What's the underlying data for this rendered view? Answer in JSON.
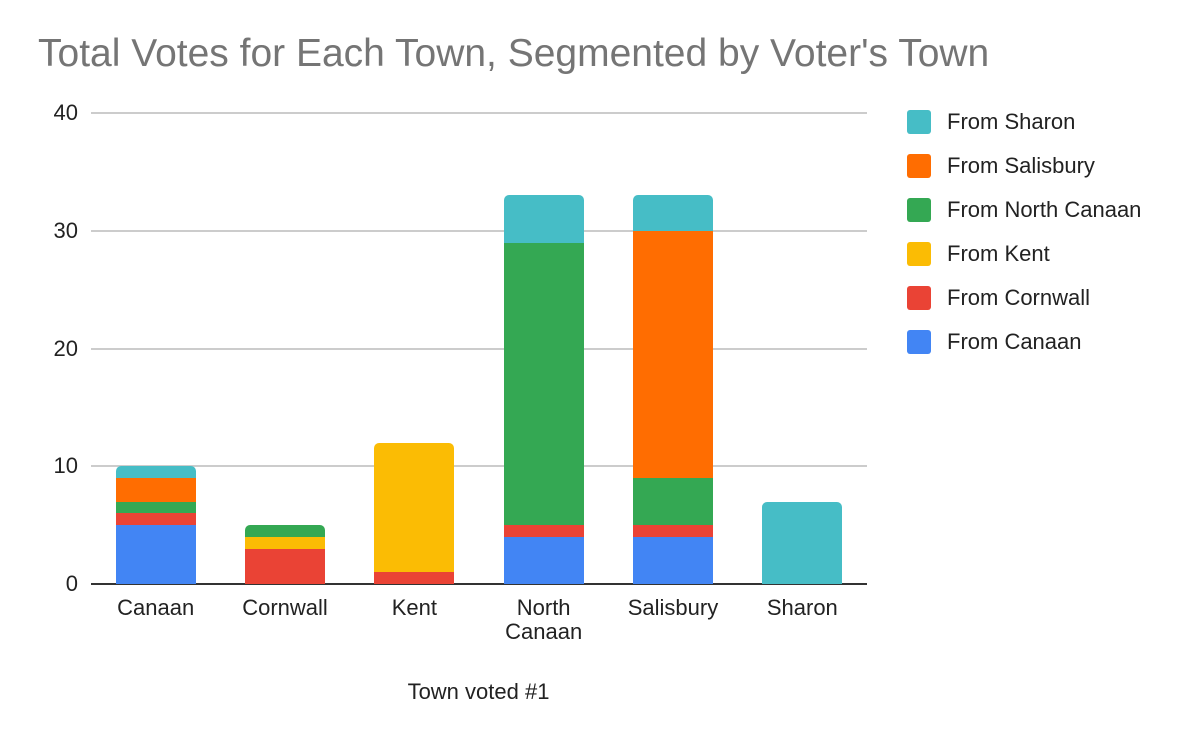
{
  "chart_data": {
    "type": "bar",
    "stacked": true,
    "title": "Total Votes for Each Town, Segmented by Voter's Town",
    "xlabel": "Town voted #1",
    "ylabel": "",
    "ylim": [
      0,
      40
    ],
    "yticks": [
      0,
      10,
      20,
      30,
      40
    ],
    "grid": true,
    "legend_position": "right",
    "categories": [
      "Canaan",
      "Cornwall",
      "Kent",
      "North Canaan",
      "Salisbury",
      "Sharon"
    ],
    "series": [
      {
        "name": "From Canaan",
        "color": "#4285f4",
        "values": [
          5,
          0,
          0,
          4,
          4,
          0
        ]
      },
      {
        "name": "From Cornwall",
        "color": "#ea4335",
        "values": [
          1,
          3,
          1,
          1,
          1,
          0
        ]
      },
      {
        "name": "From Kent",
        "color": "#fbbc04",
        "values": [
          0,
          1,
          11,
          0,
          0,
          0
        ]
      },
      {
        "name": "From North Canaan",
        "color": "#34a853",
        "values": [
          1,
          1,
          0,
          24,
          4,
          0
        ]
      },
      {
        "name": "From Salisbury",
        "color": "#ff6d01",
        "values": [
          2,
          0,
          0,
          0,
          21,
          0
        ]
      },
      {
        "name": "From Sharon",
        "color": "#46bdc6",
        "values": [
          1,
          0,
          0,
          4,
          3,
          7
        ]
      }
    ]
  },
  "x_labels": [
    {
      "line1": "Canaan",
      "line2": ""
    },
    {
      "line1": "Cornwall",
      "line2": ""
    },
    {
      "line1": "Kent",
      "line2": ""
    },
    {
      "line1": "North",
      "line2": "Canaan"
    },
    {
      "line1": "Salisbury",
      "line2": ""
    },
    {
      "line1": "Sharon",
      "line2": ""
    }
  ],
  "legend_order": [
    "From Sharon",
    "From Salisbury",
    "From North Canaan",
    "From Kent",
    "From Cornwall",
    "From Canaan"
  ]
}
